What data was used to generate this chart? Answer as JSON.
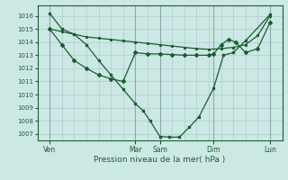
{
  "bg_color": "#cce8e4",
  "plot_bg_color": "#cce8e4",
  "grid_color": "#aacccc",
  "line_color": "#1a5c30",
  "title": "Pression niveau de la mer( hPa )",
  "ylim": [
    1006.5,
    1016.8
  ],
  "yticks": [
    1007,
    1008,
    1009,
    1010,
    1011,
    1012,
    1013,
    1014,
    1015,
    1016
  ],
  "xlim": [
    0,
    10
  ],
  "day_labels": [
    "Ven",
    "Mar",
    "Sam",
    "Dim",
    "Lun"
  ],
  "day_positions": [
    0.5,
    4.0,
    5.0,
    7.2,
    9.5
  ],
  "vline_positions": [
    0.5,
    4.0,
    5.0,
    7.2,
    9.5
  ],
  "line1_x": [
    0.5,
    1.0,
    1.5,
    2.0,
    2.5,
    3.0,
    3.5,
    4.0,
    4.3,
    4.6,
    5.0,
    5.4,
    5.8,
    6.2,
    6.6,
    7.2,
    7.6,
    8.0,
    8.5,
    9.5
  ],
  "line1_y": [
    1016.2,
    1015.0,
    1014.6,
    1013.8,
    1012.6,
    1011.5,
    1010.4,
    1009.3,
    1008.8,
    1008.0,
    1006.8,
    1006.75,
    1006.75,
    1007.5,
    1008.3,
    1010.5,
    1013.0,
    1013.2,
    1014.1,
    1016.1
  ],
  "line2_x": [
    0.5,
    1.0,
    1.5,
    2.0,
    2.5,
    3.0,
    3.5,
    4.0,
    4.5,
    5.0,
    5.5,
    6.0,
    6.5,
    7.0,
    7.5,
    8.0,
    8.5,
    9.0,
    9.5
  ],
  "line2_y": [
    1015.0,
    1014.8,
    1014.6,
    1014.4,
    1014.3,
    1014.2,
    1014.1,
    1014.0,
    1013.9,
    1013.8,
    1013.7,
    1013.6,
    1013.5,
    1013.45,
    1013.5,
    1013.6,
    1013.8,
    1014.5,
    1016.0
  ],
  "line3_x": [
    0.5,
    1.0,
    1.5,
    2.0,
    2.5,
    3.0,
    3.5,
    4.0,
    4.5,
    5.0,
    5.5,
    6.0,
    6.5,
    7.0,
    7.2,
    7.5,
    7.8,
    8.1,
    8.5,
    9.0,
    9.5
  ],
  "line3_y": [
    1015.0,
    1013.8,
    1012.6,
    1012.0,
    1011.5,
    1011.2,
    1011.0,
    1013.2,
    1013.1,
    1013.1,
    1013.05,
    1013.0,
    1013.0,
    1013.0,
    1013.1,
    1013.8,
    1014.2,
    1014.0,
    1013.2,
    1013.5,
    1015.5
  ]
}
